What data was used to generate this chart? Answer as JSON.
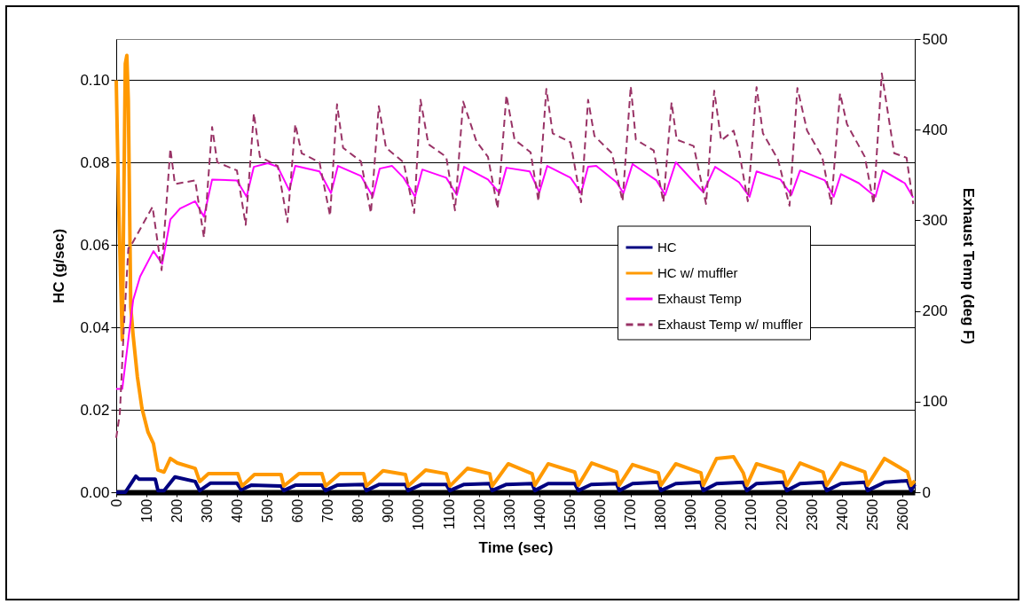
{
  "chart_data": {
    "type": "line",
    "xlabel": "Time (sec)",
    "ylabel": "HC (g/sec)",
    "y2label": "Exhaust Temp (deg F)",
    "xlim": [
      0,
      2640
    ],
    "xticks": [
      0,
      100,
      200,
      300,
      400,
      500,
      600,
      700,
      800,
      900,
      1000,
      1100,
      1200,
      1300,
      1400,
      1500,
      1600,
      1700,
      1800,
      1900,
      2000,
      2100,
      2200,
      2300,
      2400,
      2500,
      2600
    ],
    "ylim": [
      0,
      0.11
    ],
    "yticks": [
      {
        "value": 0,
        "label": "0.00"
      },
      {
        "value": 0.02,
        "label": "0.02"
      },
      {
        "value": 0.04,
        "label": "0.04"
      },
      {
        "value": 0.06,
        "label": "0.06"
      },
      {
        "value": 0.08,
        "label": "0.08"
      },
      {
        "value": 0.1,
        "label": "0.10"
      }
    ],
    "y2lim": [
      0,
      500
    ],
    "y2ticks": [
      0,
      100,
      200,
      300,
      400,
      500
    ],
    "grid": "y",
    "legend": "right",
    "series": [
      {
        "name": "HC",
        "color": "#000080",
        "line_style": "solid",
        "x": [
          0,
          30,
          65,
          75,
          129,
          138,
          158,
          194,
          261,
          276,
          311,
          399,
          413,
          446,
          545,
          554,
          592,
          680,
          692,
          730,
          818,
          827,
          870,
          956,
          965,
          1010,
          1091,
          1103,
          1150,
          1235,
          1243,
          1290,
          1375,
          1384,
          1428,
          1516,
          1528,
          1570,
          1654,
          1663,
          1707,
          1792,
          1801,
          1850,
          1933,
          1941,
          1985,
          2073,
          2085,
          2117,
          2205,
          2217,
          2261,
          2337,
          2349,
          2396,
          2475,
          2484,
          2540,
          2616,
          2628,
          2640
        ],
        "values": [
          0,
          0,
          0.0039,
          0.0032,
          0.0032,
          0.0004,
          0.0004,
          0.0037,
          0.0026,
          0.0004,
          0.0022,
          0.0022,
          0.0006,
          0.0017,
          0.0015,
          0.0004,
          0.0017,
          0.0017,
          0.0004,
          0.0017,
          0.0019,
          0.0004,
          0.0019,
          0.0019,
          0.0004,
          0.0019,
          0.0019,
          0.0004,
          0.0019,
          0.0021,
          0.0004,
          0.0019,
          0.0021,
          0.0004,
          0.0021,
          0.0021,
          0.0004,
          0.0019,
          0.0021,
          0.0004,
          0.0021,
          0.0024,
          0.0004,
          0.0021,
          0.0024,
          0.0004,
          0.0021,
          0.0024,
          0.0004,
          0.0021,
          0.0024,
          0.0004,
          0.0021,
          0.0024,
          0.0004,
          0.0021,
          0.0024,
          0.0004,
          0.0024,
          0.0028,
          0.0004,
          0.0019
        ]
      },
      {
        "name": "HC w/ muffler",
        "color": "#ff9900",
        "line_style": "solid",
        "x": [
          0,
          8,
          20,
          30,
          35,
          40,
          48,
          56,
          70,
          85,
          105,
          123,
          138,
          158,
          179,
          202,
          261,
          276,
          305,
          402,
          416,
          457,
          545,
          554,
          604,
          680,
          692,
          739,
          818,
          827,
          882,
          956,
          965,
          1023,
          1091,
          1103,
          1161,
          1235,
          1243,
          1296,
          1375,
          1384,
          1428,
          1516,
          1528,
          1572,
          1654,
          1663,
          1707,
          1792,
          1801,
          1850,
          1933,
          1941,
          1985,
          2041,
          2073,
          2085,
          2117,
          2205,
          2217,
          2261,
          2337,
          2349,
          2396,
          2475,
          2484,
          2540,
          2616,
          2628,
          2640
        ],
        "values": [
          0.1,
          0.07,
          0.037,
          0.104,
          0.106,
          0.095,
          0.045,
          0.038,
          0.028,
          0.0204,
          0.0146,
          0.0118,
          0.0054,
          0.0049,
          0.0082,
          0.0071,
          0.0058,
          0.0026,
          0.0045,
          0.0045,
          0.0015,
          0.0043,
          0.0043,
          0.0015,
          0.0045,
          0.0045,
          0.0015,
          0.0045,
          0.0045,
          0.0015,
          0.0052,
          0.0043,
          0.0015,
          0.0054,
          0.0045,
          0.0015,
          0.0058,
          0.0045,
          0.0015,
          0.0069,
          0.0045,
          0.0017,
          0.0069,
          0.0049,
          0.0017,
          0.0071,
          0.0049,
          0.0017,
          0.0067,
          0.0047,
          0.0017,
          0.0069,
          0.0047,
          0.0017,
          0.0082,
          0.0086,
          0.0047,
          0.0017,
          0.0069,
          0.0049,
          0.0017,
          0.0071,
          0.0049,
          0.0017,
          0.0071,
          0.0049,
          0.0017,
          0.0082,
          0.0049,
          0.0017,
          0.0028
        ]
      },
      {
        "name": "Exhaust Temp",
        "color": "#ff00ff",
        "line_style": "solid",
        "axis": "y2",
        "x": [
          0,
          20,
          56,
          79,
          123,
          152,
          179,
          211,
          261,
          290,
          317,
          399,
          431,
          455,
          501,
          534,
          572,
          592,
          672,
          710,
          733,
          809,
          848,
          871,
          912,
          950,
          988,
          1012,
          1091,
          1126,
          1150,
          1229,
          1267,
          1290,
          1367,
          1399,
          1425,
          1502,
          1537,
          1560,
          1587,
          1654,
          1677,
          1707,
          1786,
          1815,
          1850,
          1941,
          1980,
          2059,
          2094,
          2117,
          2196,
          2232,
          2261,
          2343,
          2372,
          2396,
          2455,
          2510,
          2534,
          2607,
          2635
        ],
        "values": [
          114,
          114,
          212,
          238,
          266,
          252,
          301,
          313,
          321,
          304,
          345,
          344,
          326,
          359,
          363,
          359,
          333,
          360,
          354,
          330,
          360,
          349,
          326,
          357,
          360,
          347,
          326,
          356,
          347,
          328,
          359,
          345,
          330,
          358,
          354,
          331,
          360,
          347,
          330,
          359,
          360,
          342,
          330,
          362,
          344,
          328,
          364,
          331,
          359,
          342,
          326,
          354,
          345,
          328,
          355,
          344,
          326,
          351,
          341,
          326,
          355,
          341,
          325
        ]
      },
      {
        "name": "Exhaust Temp w/ muffler",
        "color": "#993366",
        "line_style": "dashed",
        "axis": "y2",
        "x": [
          0,
          12,
          25,
          40,
          47,
          120,
          150,
          179,
          194,
          261,
          290,
          317,
          334,
          399,
          428,
          455,
          475,
          534,
          566,
          592,
          613,
          672,
          707,
          730,
          750,
          809,
          842,
          868,
          892,
          950,
          985,
          1006,
          1032,
          1091,
          1120,
          1147,
          1191,
          1229,
          1261,
          1290,
          1317,
          1370,
          1396,
          1422,
          1443,
          1502,
          1537,
          1560,
          1581,
          1639,
          1674,
          1701,
          1718,
          1777,
          1809,
          1836,
          1853,
          1909,
          1950,
          1977,
          2000,
          2041,
          2059,
          2088,
          2117,
          2138,
          2188,
          2226,
          2252,
          2284,
          2334,
          2364,
          2393,
          2416,
          2475,
          2504,
          2531,
          2572,
          2613,
          2635
        ],
        "values": [
          60,
          87,
          180,
          269,
          271,
          315,
          245,
          379,
          340,
          344,
          281,
          403,
          364,
          355,
          295,
          418,
          370,
          360,
          298,
          406,
          374,
          364,
          305,
          428,
          380,
          365,
          308,
          426,
          380,
          364,
          308,
          433,
          384,
          370,
          311,
          431,
          387,
          370,
          313,
          438,
          389,
          375,
          321,
          445,
          396,
          386,
          320,
          433,
          393,
          374,
          321,
          448,
          389,
          377,
          320,
          430,
          389,
          382,
          318,
          443,
          388,
          399,
          377,
          321,
          447,
          396,
          367,
          316,
          446,
          399,
          370,
          318,
          440,
          406,
          370,
          318,
          462,
          374,
          369,
          318
        ]
      }
    ]
  }
}
